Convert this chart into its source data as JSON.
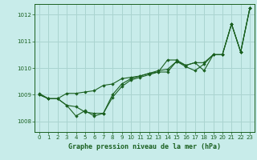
{
  "title": "Graphe pression niveau de la mer (hPa)",
  "background_color": "#c8ecea",
  "grid_color": "#aad4d0",
  "line_color": "#1a6020",
  "marker_color": "#1a6020",
  "xlim": [
    -0.5,
    23.5
  ],
  "ylim": [
    1007.6,
    1012.4
  ],
  "yticks": [
    1008,
    1009,
    1010,
    1011,
    1012
  ],
  "xticks": [
    0,
    1,
    2,
    3,
    4,
    5,
    6,
    7,
    8,
    9,
    10,
    11,
    12,
    13,
    14,
    15,
    16,
    17,
    18,
    19,
    20,
    21,
    22,
    23
  ],
  "series": [
    [
      1009.0,
      1008.85,
      1008.85,
      1008.6,
      1008.2,
      1008.4,
      1008.2,
      1008.3,
      1008.9,
      1009.3,
      1009.55,
      1009.65,
      1009.75,
      1009.85,
      1010.3,
      1010.3,
      1010.1,
      1010.2,
      1009.9,
      1010.5,
      1010.5,
      1011.65,
      1010.6,
      1012.25
    ],
    [
      1009.0,
      1008.85,
      1008.85,
      1008.6,
      1008.55,
      1008.35,
      1008.3,
      1008.3,
      1009.0,
      1009.4,
      1009.6,
      1009.7,
      1009.8,
      1009.85,
      1009.85,
      1010.25,
      1010.05,
      1009.9,
      1010.15,
      1010.5,
      1010.5,
      1011.65,
      1010.6,
      1012.25
    ],
    [
      1009.05,
      1008.85,
      1008.85,
      1009.05,
      1009.05,
      1009.1,
      1009.15,
      1009.35,
      1009.4,
      1009.6,
      1009.65,
      1009.7,
      1009.8,
      1009.9,
      1009.95,
      1010.25,
      1010.1,
      1010.2,
      1010.2,
      1010.5,
      1010.5,
      1011.65,
      1010.6,
      1012.25
    ]
  ]
}
